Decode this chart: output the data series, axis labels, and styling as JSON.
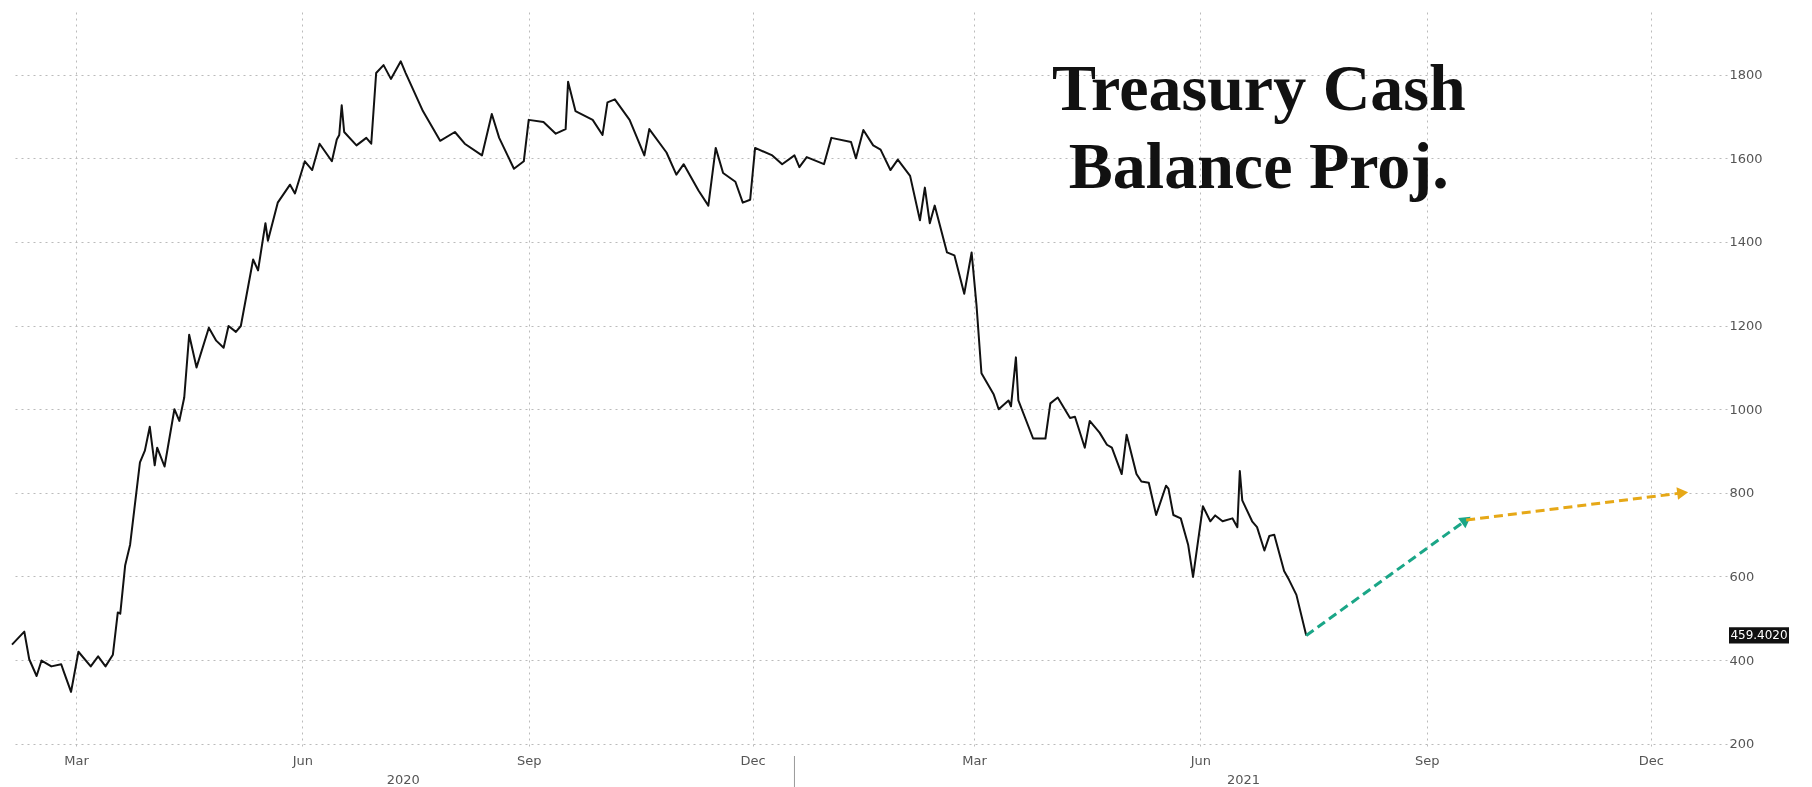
{
  "chart_data": {
    "type": "line",
    "title": "Treasury Cash Balance Proj.",
    "xlim": [
      "2020-02-18",
      "2022-01-15"
    ],
    "ylim": [
      185,
      1950
    ],
    "xticks": [
      {
        "value": "2020-03-15",
        "label": "Mar"
      },
      {
        "value": "2020-06-15",
        "label": "Jun"
      },
      {
        "value": "2020-09-15",
        "label": "Sep"
      },
      {
        "value": "2020-12-15",
        "label": "Dec"
      },
      {
        "value": "2021-03-15",
        "label": "Mar"
      },
      {
        "value": "2021-06-15",
        "label": "Jun"
      },
      {
        "value": "2021-09-15",
        "label": "Sep"
      },
      {
        "value": "2021-12-15",
        "label": "Dec"
      }
    ],
    "yticks": [
      200,
      400,
      600,
      800,
      1000,
      1200,
      1400,
      1600,
      1800
    ],
    "grid": true,
    "annotations": [
      "459.4020",
      "2020",
      "2021"
    ],
    "series": [
      {
        "color": "#111111",
        "line_style": "solid",
        "x": [
          "2020-02-18",
          "2020-02-23",
          "2020-02-25",
          "2020-02-28",
          "2020-03-01",
          "2020-03-05",
          "2020-03-09",
          "2020-03-10",
          "2020-03-13",
          "2020-03-16",
          "2020-03-21",
          "2020-03-24",
          "2020-03-27",
          "2020-03-30",
          "2020-04-01",
          "2020-04-02",
          "2020-04-04",
          "2020-04-06",
          "2020-04-10",
          "2020-04-12",
          "2020-04-14",
          "2020-04-16",
          "2020-04-17",
          "2020-04-20",
          "2020-04-24",
          "2020-04-26",
          "2020-04-28",
          "2020-04-30",
          "2020-05-03",
          "2020-05-08",
          "2020-05-11",
          "2020-05-14",
          "2020-05-16",
          "2020-05-19",
          "2020-05-21",
          "2020-05-26",
          "2020-05-28",
          "2020-05-31",
          "2020-06-01",
          "2020-06-05",
          "2020-06-10",
          "2020-06-12",
          "2020-06-16",
          "2020-06-19",
          "2020-06-22",
          "2020-06-27",
          "2020-06-29",
          "2020-06-30",
          "2020-07-01",
          "2020-07-02",
          "2020-07-07",
          "2020-07-11",
          "2020-07-13",
          "2020-07-15",
          "2020-07-18",
          "2020-07-21",
          "2020-07-25",
          "2020-07-27",
          "2020-08-03",
          "2020-08-10",
          "2020-08-16",
          "2020-08-20",
          "2020-08-27",
          "2020-08-31",
          "2020-09-03",
          "2020-09-09",
          "2020-09-13",
          "2020-09-15",
          "2020-09-21",
          "2020-09-26",
          "2020-09-30",
          "2020-10-01",
          "2020-10-04",
          "2020-10-11",
          "2020-10-15",
          "2020-10-17",
          "2020-10-20",
          "2020-10-26",
          "2020-11-01",
          "2020-11-03",
          "2020-11-10",
          "2020-11-14",
          "2020-11-17",
          "2020-11-23",
          "2020-11-27",
          "2020-11-30",
          "2020-12-03",
          "2020-12-08",
          "2020-12-11",
          "2020-12-14",
          "2020-12-16",
          "2020-12-23",
          "2020-12-27",
          "2021-01-01",
          "2021-01-03",
          "2021-01-06",
          "2021-01-13",
          "2021-01-16",
          "2021-01-24",
          "2021-01-26",
          "2021-01-29",
          "2021-02-02",
          "2021-02-05",
          "2021-02-09",
          "2021-02-12",
          "2021-02-17",
          "2021-02-21",
          "2021-02-23",
          "2021-02-25",
          "2021-02-27",
          "2021-03-04",
          "2021-03-07",
          "2021-03-11",
          "2021-03-14",
          "2021-03-16",
          "2021-03-18",
          "2021-03-23",
          "2021-03-25",
          "2021-03-29",
          "2021-03-30",
          "2021-04-01",
          "2021-04-02",
          "2021-04-08",
          "2021-04-13",
          "2021-04-15",
          "2021-04-18",
          "2021-04-23",
          "2021-04-25",
          "2021-04-29",
          "2021-05-01",
          "2021-05-05",
          "2021-05-08",
          "2021-05-10",
          "2021-05-14",
          "2021-05-16",
          "2021-05-20",
          "2021-05-22",
          "2021-05-25",
          "2021-05-28",
          "2021-06-01",
          "2021-06-02",
          "2021-06-04",
          "2021-06-07",
          "2021-06-10",
          "2021-06-12",
          "2021-06-16",
          "2021-06-19",
          "2021-06-21",
          "2021-06-24",
          "2021-06-28",
          "2021-06-30",
          "2021-07-01",
          "2021-07-02",
          "2021-07-06",
          "2021-07-08",
          "2021-07-11",
          "2021-07-13",
          "2021-07-15",
          "2021-07-19",
          "2021-07-21",
          "2021-07-24",
          "2021-07-28"
        ],
        "values": [
          437,
          468,
          402,
          362,
          399,
          385,
          390,
          373,
          324,
          420,
          385,
          409,
          385,
          413,
          514,
          511,
          627,
          676,
          873,
          901,
          958,
          866,
          908,
          863,
          1000,
          972,
          1028,
          1178,
          1100,
          1195,
          1164,
          1147,
          1199,
          1185,
          1199,
          1358,
          1332,
          1445,
          1403,
          1494,
          1537,
          1516,
          1593,
          1572,
          1635,
          1593,
          1645,
          1656,
          1727,
          1663,
          1631,
          1649,
          1635,
          1804,
          1823,
          1790,
          1832,
          1804,
          1713,
          1642,
          1663,
          1635,
          1607,
          1706,
          1649,
          1575,
          1593,
          1692,
          1687,
          1659,
          1670,
          1783,
          1713,
          1692,
          1656,
          1734,
          1741,
          1692,
          1607,
          1670,
          1614,
          1561,
          1586,
          1523,
          1487,
          1625,
          1565,
          1544,
          1494,
          1501,
          1625,
          1607,
          1586,
          1607,
          1579,
          1603,
          1586,
          1649,
          1639,
          1600,
          1668,
          1631,
          1621,
          1572,
          1597,
          1558,
          1452,
          1530,
          1445,
          1487,
          1375,
          1368,
          1276,
          1375,
          1248,
          1086,
          1035,
          1000,
          1021,
          1007,
          1124,
          1021,
          930,
          930,
          1014,
          1028,
          979,
          982,
          908,
          972,
          944,
          915,
          908,
          845,
          939,
          845,
          827,
          824,
          747,
          817,
          810,
          747,
          739,
          676,
          599,
          768,
          732,
          746,
          732,
          739,
          718,
          852,
          782,
          732,
          718,
          662,
          697,
          700,
          613,
          592,
          556,
          459
        ]
      },
      {
        "color": "#1aa687",
        "line_style": "dashed",
        "x": [
          "2021-07-28",
          "2021-10-01"
        ],
        "values": [
          459,
          735
        ]
      },
      {
        "color": "#e6a817",
        "line_style": "dashed",
        "x": [
          "2021-10-01",
          "2021-12-28"
        ],
        "values": [
          735,
          800
        ]
      }
    ]
  }
}
